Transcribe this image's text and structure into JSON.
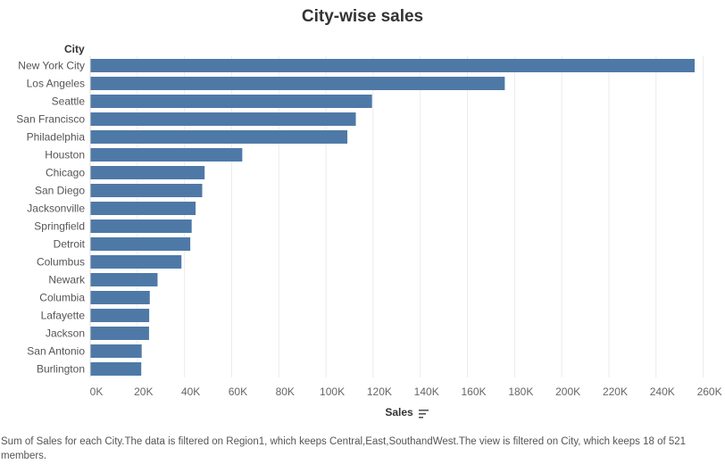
{
  "chart_data": {
    "type": "bar",
    "orientation": "horizontal",
    "title": "City-wise sales",
    "row_header": "City",
    "xlabel": "Sales",
    "categories": [
      "New York City",
      "Los Angeles",
      "Seattle",
      "San Francisco",
      "Philadelphia",
      "Houston",
      "Chicago",
      "San Diego",
      "Jacksonville",
      "Springfield",
      "Detroit",
      "Columbus",
      "Newark",
      "Columbia",
      "Lafayette",
      "Jackson",
      "San Antonio",
      "Burlington"
    ],
    "values": [
      256368,
      175851,
      119541,
      112669,
      109077,
      64505,
      48540,
      47521,
      44713,
      43054,
      42447,
      38706,
      28577,
      25283,
      25036,
      24964,
      21844,
      21668
    ],
    "xlim": [
      0,
      260000
    ],
    "xticks": [
      "0K",
      "20K",
      "40K",
      "60K",
      "80K",
      "100K",
      "120K",
      "140K",
      "160K",
      "180K",
      "200K",
      "220K",
      "240K",
      "260K"
    ],
    "grid": true,
    "bar_color": "#4e79a7"
  },
  "footer_text": "Sum of Sales for each City.The data is filtered on Region1, which keeps Central,East,SouthandWest.The view is filtered on City, which keeps 18 of 521 members."
}
